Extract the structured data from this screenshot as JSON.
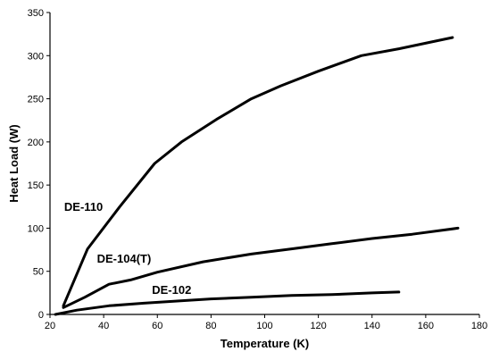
{
  "chart_data": {
    "type": "line",
    "title": "",
    "xlabel": "Temperature (K)",
    "ylabel": "Heat Load (W)",
    "xlim": [
      20,
      180
    ],
    "ylim": [
      0,
      350
    ],
    "xticks": [
      20,
      40,
      60,
      80,
      100,
      120,
      140,
      160,
      180
    ],
    "yticks": [
      0,
      50,
      100,
      150,
      200,
      250,
      300,
      350
    ],
    "grid": false,
    "legend": "none",
    "series": [
      {
        "name": "DE-110",
        "x": [
          25,
          34,
          46,
          59,
          69,
          82,
          95,
          106,
          120,
          136,
          150,
          170
        ],
        "y": [
          10,
          76,
          125,
          175,
          200,
          226,
          250,
          265,
          282,
          300,
          308,
          321
        ]
      },
      {
        "name": "DE-104(T)",
        "x": [
          25,
          33,
          42,
          50,
          60,
          77,
          95,
          110,
          125,
          140,
          155,
          172
        ],
        "y": [
          8,
          20,
          35,
          40,
          49,
          61,
          70,
          76,
          82,
          88,
          93,
          100
        ]
      },
      {
        "name": "DE-102",
        "x": [
          22,
          30,
          42,
          55,
          70,
          80,
          95,
          110,
          125,
          140,
          150
        ],
        "y": [
          0,
          5,
          10,
          13,
          16,
          18,
          20,
          22,
          23,
          25,
          26
        ]
      }
    ]
  }
}
